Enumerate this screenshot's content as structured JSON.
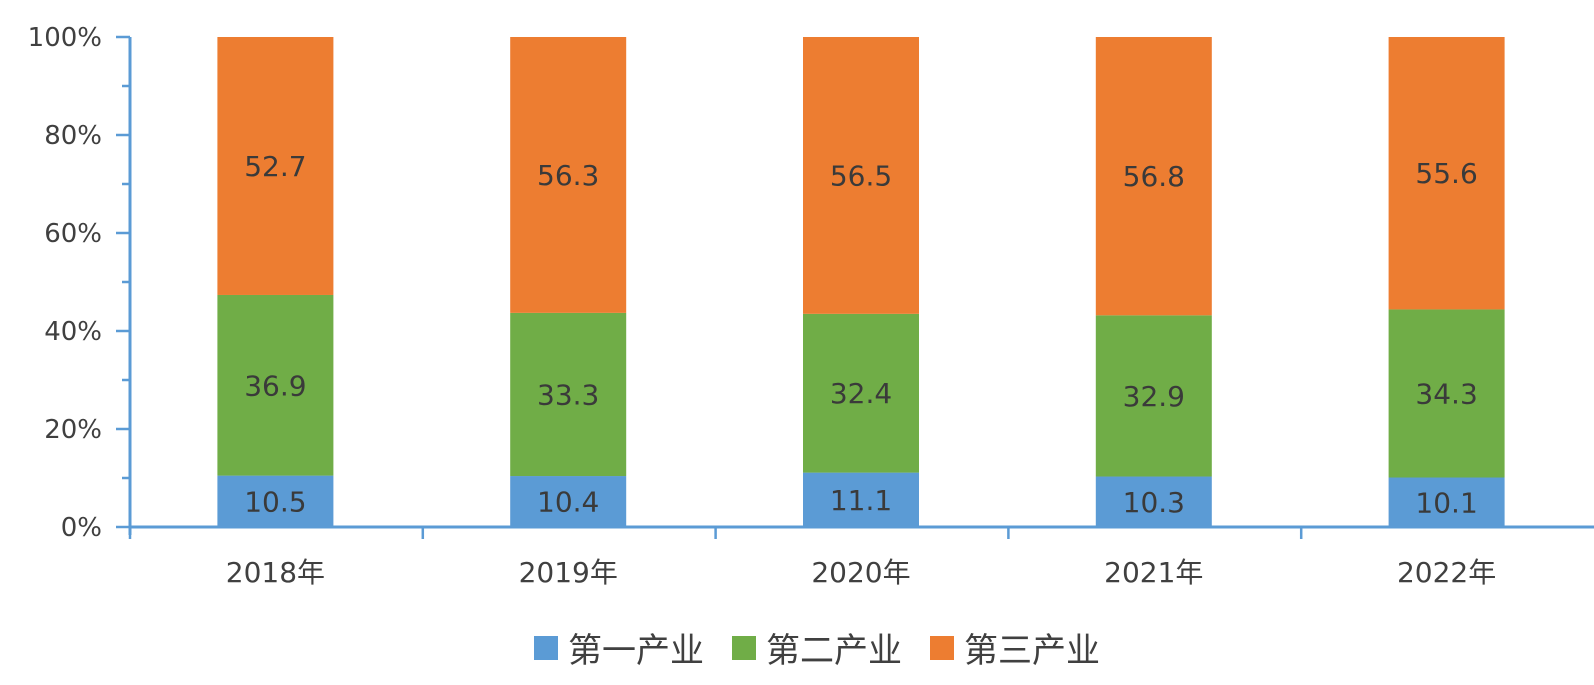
{
  "chart_data": {
    "type": "bar",
    "stacked": "percent",
    "title": "",
    "xlabel": "",
    "ylabel": "",
    "categories": [
      "2018年",
      "2019年",
      "2020年",
      "2021年",
      "2022年"
    ],
    "series": [
      {
        "name": "第一产业",
        "color": "#5B9BD5",
        "values": [
          10.5,
          10.4,
          11.1,
          10.3,
          10.1
        ]
      },
      {
        "name": "第二产业",
        "color": "#70AD47",
        "values": [
          36.9,
          33.3,
          32.4,
          32.9,
          34.3
        ]
      },
      {
        "name": "第三产业",
        "color": "#ED7D31",
        "values": [
          52.7,
          56.3,
          56.5,
          56.8,
          55.6
        ]
      }
    ],
    "yaxis": {
      "ylim": [
        0,
        100
      ],
      "ticks": [
        "0%",
        "20%",
        "40%",
        "60%",
        "80%",
        "100%"
      ]
    },
    "grid": false,
    "legend_position": "bottom",
    "axis_color": "#5B9BD5"
  }
}
